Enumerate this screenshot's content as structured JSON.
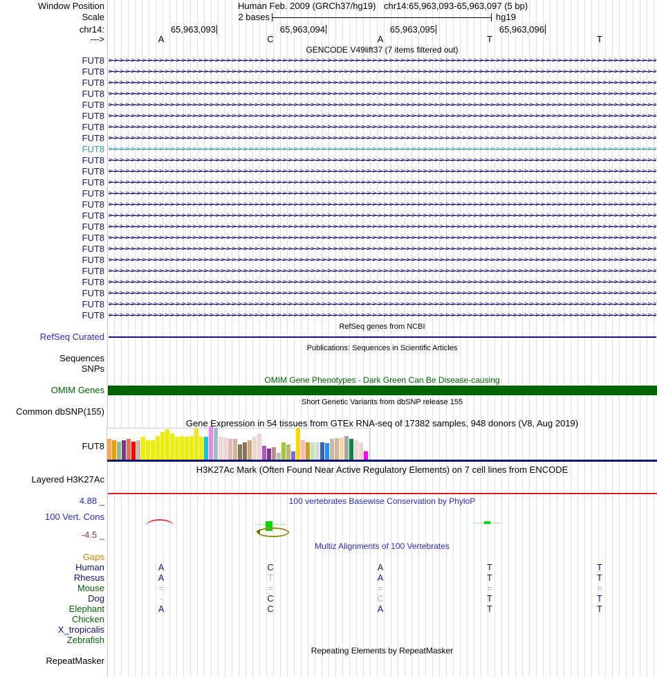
{
  "colors": {
    "navy": "#11117a",
    "teal": "#2f9aa8",
    "dark_green": "#006400",
    "red_line": "#d62020",
    "blue_title": "#2a2ac8",
    "orange_label": "#cc8400",
    "maroon_label": "#993333",
    "grid_line": "#dcdcf2",
    "omim_bar": "#006400"
  },
  "header": {
    "row_label": "Window Position",
    "assembly": "Human Feb. 2009 (GRCh37/hg19)",
    "position": "chr14:65,963,093-65,963,097 (5 bp)",
    "scale_label": "Scale",
    "scale_text": "2 bases",
    "genome": "hg19",
    "chrom_label": "chr14:",
    "strand_label": "--->",
    "coordinates": [
      "65,963,093",
      "65,963,094",
      "65,963,095",
      "65,963,096"
    ],
    "bases": [
      "A",
      "C",
      "A",
      "T",
      "T"
    ]
  },
  "gencode": {
    "title": "GENCODE V49lift37 (7 items filtered out)",
    "gene": "FUT8",
    "rows": 24,
    "highlight_index": 8
  },
  "refseq": {
    "title": "RefSeq genes from NCBI",
    "label": "RefSeq Curated"
  },
  "publications": {
    "title": "Publications: Sequences in Scientific Articles",
    "sequences_label": "Sequences",
    "snps_label": "SNPs"
  },
  "omim": {
    "title": "OMIM Gene Phenotypes - Dark Green Can Be Disease-causing",
    "label": "OMIM Genes"
  },
  "dbsnp": {
    "title": "Short Genetic Variants from dbSNP release 155",
    "label": "Common dbSNP(155)"
  },
  "gtex": {
    "title": "Gene Expression in 54 tissues from GTEx RNA-seq of 17382 samples, 948 donors (V8, Aug 2019)",
    "label": "FUT8",
    "bars": [
      [
        "#FFA54F",
        30
      ],
      [
        "#EE9A00",
        28
      ],
      [
        "#8FBC8F",
        26
      ],
      [
        "#7A378B",
        28
      ],
      [
        "#EE6A50",
        30
      ],
      [
        "#FF0000",
        26
      ],
      [
        "#CDB79E",
        28
      ],
      [
        "#EEEE00",
        33
      ],
      [
        "#EEEE00",
        28
      ],
      [
        "#EEEE00",
        28
      ],
      [
        "#EEEE00",
        34
      ],
      [
        "#EEEE00",
        40
      ],
      [
        "#EEEE00",
        44
      ],
      [
        "#EEEE00",
        38
      ],
      [
        "#EEEE00",
        33
      ],
      [
        "#EEEE00",
        34
      ],
      [
        "#EEEE00",
        33
      ],
      [
        "#EEEE00",
        34
      ],
      [
        "#EEEE00",
        45
      ],
      [
        "#EEEE00",
        33
      ],
      [
        "#00CDCD",
        33
      ],
      [
        "#EE82EE",
        48
      ],
      [
        "#9AC0CD",
        46
      ],
      [
        "#EED5D2",
        33
      ],
      [
        "#EED5D2",
        32
      ],
      [
        "#EEB4B4",
        30
      ],
      [
        "#CDB79E",
        30
      ],
      [
        "#8B7355",
        22
      ],
      [
        "#8B7355",
        25
      ],
      [
        "#CDAA7D",
        28
      ],
      [
        "#EED5D2",
        33
      ],
      [
        "#EED5D2",
        38
      ],
      [
        "#B452CD",
        20
      ],
      [
        "#7A378B",
        16
      ],
      [
        "#BC8F8F",
        18
      ],
      [
        "#C0C0C0",
        10
      ],
      [
        "#9ACD32",
        25
      ],
      [
        "#BDB76B",
        22
      ],
      [
        "#7A67EE",
        12
      ],
      [
        "#FFD700",
        46
      ],
      [
        "#FFB6C1",
        28
      ],
      [
        "#CD9B1D",
        25
      ],
      [
        "#B4EEB4",
        25
      ],
      [
        "#D9D9D9",
        25
      ],
      [
        "#3A5FCD",
        25
      ],
      [
        "#1E90FF",
        24
      ],
      [
        "#CDB79E",
        30
      ],
      [
        "#CDB79E",
        31
      ],
      [
        "#FFD39B",
        32
      ],
      [
        "#A6A6A6",
        34
      ],
      [
        "#008B45",
        30
      ],
      [
        "#EED5D2",
        28
      ],
      [
        "#EED5D2",
        25
      ],
      [
        "#FF00FF",
        12
      ]
    ]
  },
  "h3k27ac": {
    "title": "H3K27Ac Mark (Often Found Near Active Regulatory Elements) on 7 cell lines from ENCODE",
    "label": "Layered H3K27Ac"
  },
  "phylop": {
    "title": "100 vertebrates Basewise Conservation by PhyloP",
    "label": "100 Vert. Cons",
    "max": "4.88 _",
    "min": "-4.5 _"
  },
  "multiz": {
    "title": "Multiz Alignments of 100 Vertebrates",
    "species": [
      {
        "name": "Gaps",
        "color": "orange",
        "cells": [
          null,
          null,
          null,
          null,
          null
        ]
      },
      {
        "name": "Human",
        "color": "navy",
        "cells": [
          {
            "t": "A"
          },
          {
            "t": "C"
          },
          {
            "t": "A"
          },
          {
            "t": "T"
          },
          {
            "t": "T"
          }
        ]
      },
      {
        "name": "Rhesus",
        "color": "navy",
        "cells": [
          {
            "t": "A"
          },
          {
            "t": "T",
            "dim": true
          },
          {
            "t": "A"
          },
          {
            "t": "T"
          },
          {
            "t": "T"
          }
        ]
      },
      {
        "name": "Mouse",
        "color": "green",
        "cells": [
          {
            "t": "=",
            "dim": true
          },
          {
            "t": "=",
            "dim": true
          },
          {
            "t": "=",
            "dim": true
          },
          {
            "t": "=",
            "dim": true
          },
          {
            "t": "=",
            "dim": true
          }
        ]
      },
      {
        "name": "Dog",
        "color": "navy",
        "cells": [
          {
            "t": "-",
            "dim": true
          },
          {
            "t": "C"
          },
          {
            "t": "C",
            "dim": true
          },
          {
            "t": "T"
          },
          {
            "t": "T"
          }
        ]
      },
      {
        "name": "Elephant",
        "color": "green",
        "cells": [
          {
            "t": "A"
          },
          {
            "t": "C"
          },
          {
            "t": "A"
          },
          {
            "t": "T"
          },
          {
            "t": "T"
          }
        ]
      },
      {
        "name": "Chicken",
        "color": "green",
        "cells": [
          null,
          null,
          null,
          null,
          null
        ]
      },
      {
        "name": "X_tropicalis",
        "color": "navy",
        "cells": [
          null,
          null,
          null,
          null,
          null
        ]
      },
      {
        "name": "Zebrafish",
        "color": "green",
        "cells": [
          null,
          null,
          null,
          null,
          null
        ]
      }
    ]
  },
  "repeatmasker": {
    "title": "Repeating Elements by RepeatMasker",
    "label": "RepeatMasker"
  }
}
